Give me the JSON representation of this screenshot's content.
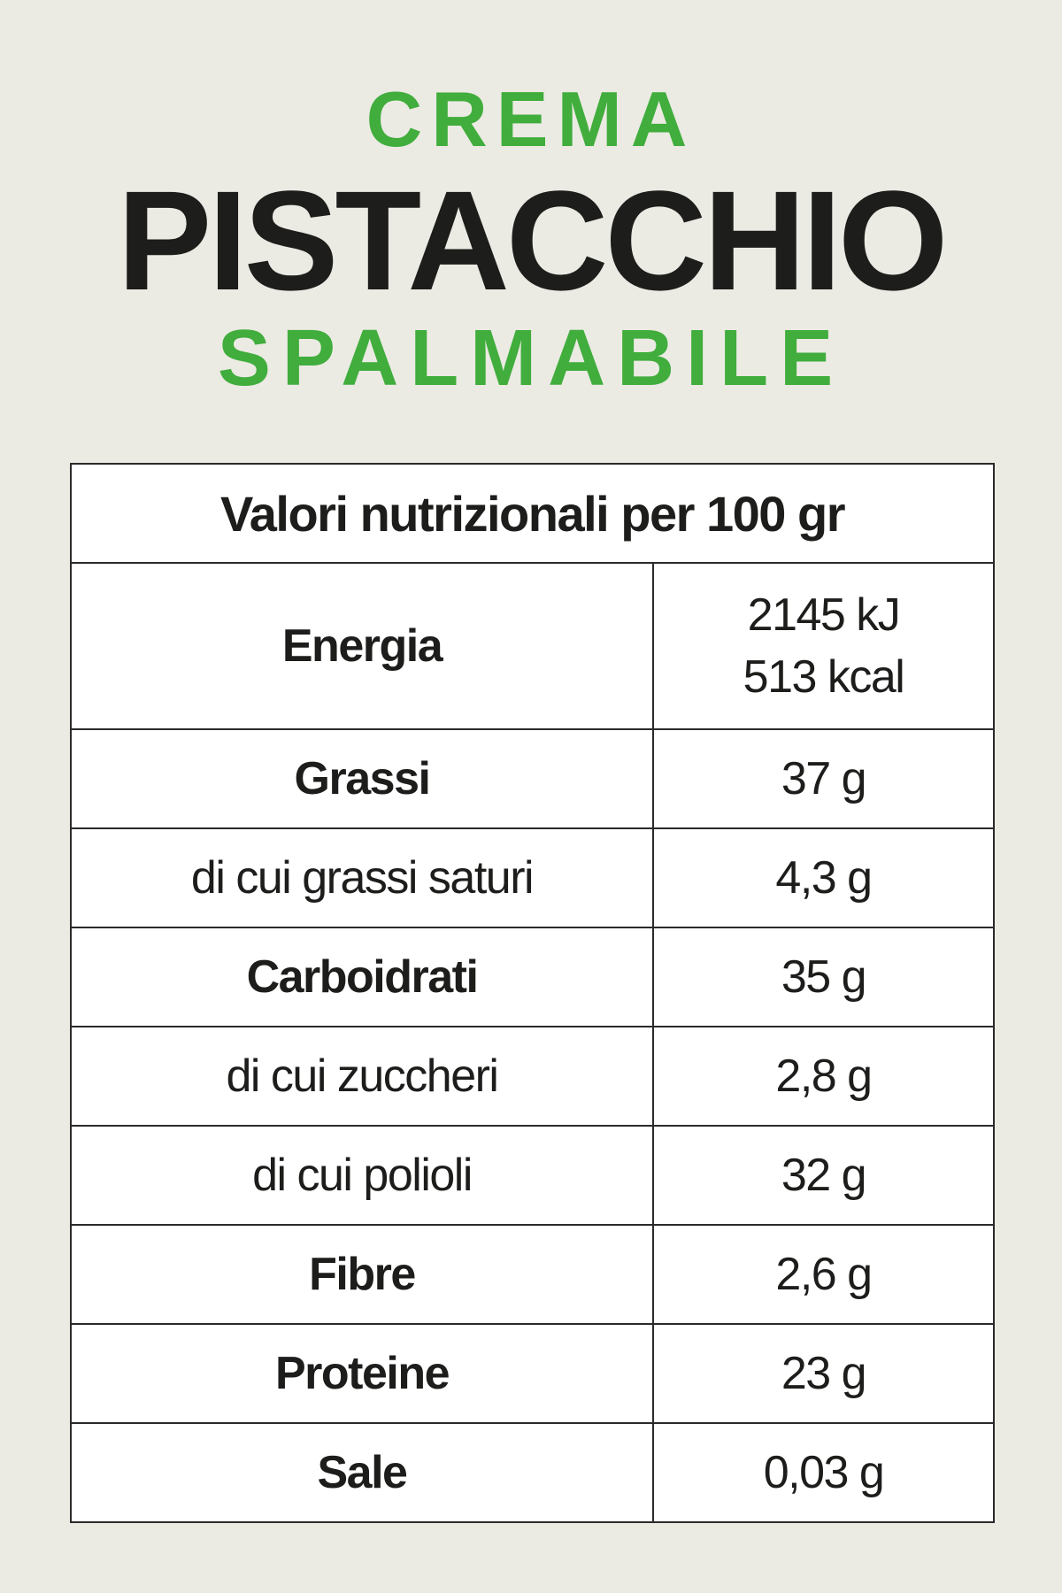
{
  "title": {
    "line1": "CREMA",
    "line2": "PISTACCHIO",
    "line3": "SPALMABILE"
  },
  "colors": {
    "accent": "#40ad3c",
    "text": "#1d1d1b",
    "background": "#ebeae3"
  },
  "table": {
    "header": "Valori nutrizionali per  100 gr",
    "energy": {
      "label": "Energia",
      "kj": "2145 kJ",
      "kcal": "513 kcal"
    },
    "rows": [
      {
        "label": "Grassi",
        "value": "37 g",
        "bold": true
      },
      {
        "label": "di cui grassi saturi",
        "value": "4,3 g",
        "bold": false
      },
      {
        "label": "Carboidrati",
        "value": "35 g",
        "bold": true
      },
      {
        "label": "di cui zuccheri",
        "value": "2,8 g",
        "bold": false
      },
      {
        "label": "di cui polioli",
        "value": "32 g",
        "bold": false
      },
      {
        "label": "Fibre",
        "value": "2,6 g",
        "bold": true
      },
      {
        "label": "Proteine",
        "value": "23 g",
        "bold": true
      },
      {
        "label": "Sale",
        "value": "0,03 g",
        "bold": true
      }
    ]
  }
}
